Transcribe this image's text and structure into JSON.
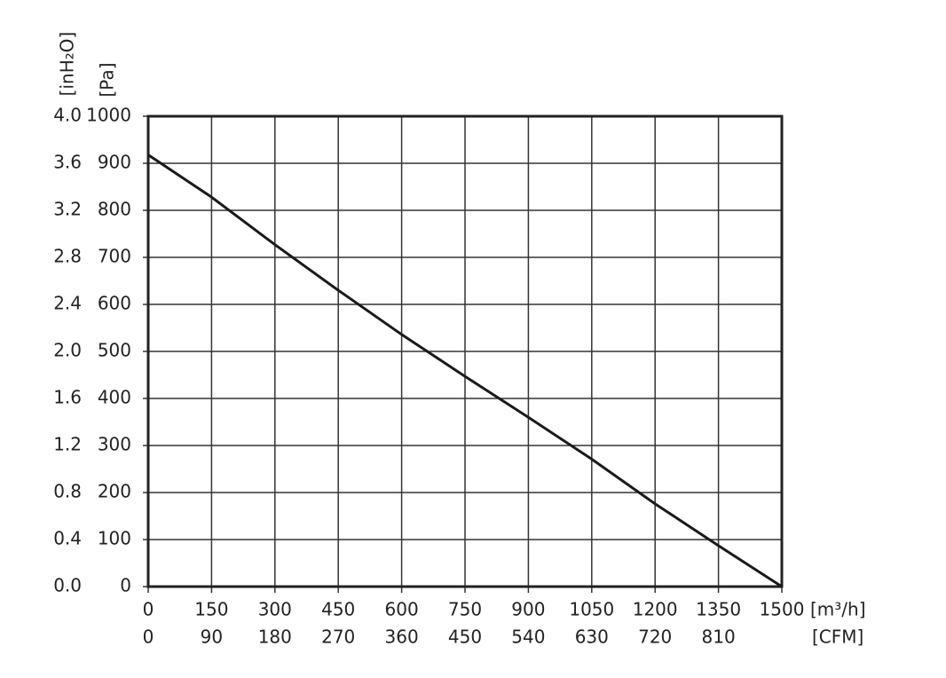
{
  "chart_data": {
    "type": "line",
    "x_label": "[m³/h]",
    "x2_label": "[CFM]",
    "y_label": "[Pa]",
    "y2_label": "[inH₂O]",
    "x": [
      0,
      150,
      300,
      450,
      600,
      750,
      900,
      1050,
      1200,
      1350,
      1500
    ],
    "series": [
      {
        "color": "#1a1a1a",
        "values": [
          918,
          828,
          727,
          630,
          536,
          447,
          360,
          271,
          176,
          87,
          0
        ]
      }
    ],
    "xlim": [
      0,
      1500
    ],
    "xticks": [
      0,
      150,
      300,
      450,
      600,
      750,
      900,
      1050,
      1200,
      1350,
      1500
    ],
    "x2lim": [
      0,
      900
    ],
    "x2ticks": [
      0,
      90,
      180,
      270,
      360,
      450,
      540,
      630,
      720,
      810
    ],
    "ylim": [
      0,
      1000
    ],
    "yticks": [
      0,
      100,
      200,
      300,
      400,
      500,
      600,
      700,
      800,
      900,
      1000
    ],
    "y2lim": [
      0,
      4
    ],
    "y2ticks": [
      {
        "value": 0,
        "label": "0.0"
      },
      0.4,
      0.8,
      1.2,
      1.6,
      {
        "value": 2,
        "label": "2.0"
      },
      2.4,
      2.8,
      3.2,
      3.6,
      {
        "value": 4,
        "label": "4.0"
      }
    ],
    "grid": true
  }
}
